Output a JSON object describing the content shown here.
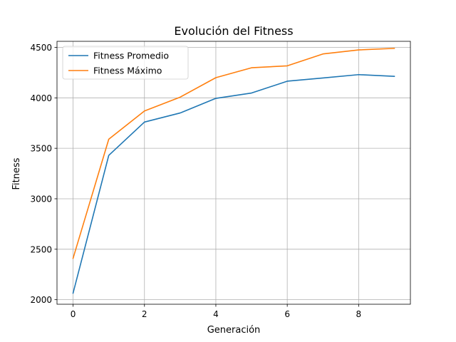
{
  "chart_data": {
    "type": "line",
    "title": "Evolución del Fitness",
    "xlabel": "Generación",
    "ylabel": "Fitness",
    "xlim": [
      -0.45,
      9.45
    ],
    "ylim": [
      1955,
      4560
    ],
    "xticks": [
      0,
      2,
      4,
      6,
      8
    ],
    "yticks": [
      2000,
      2500,
      3000,
      3500,
      4000,
      4500
    ],
    "grid": true,
    "legend_position": "upper-left",
    "x": [
      0,
      1,
      2,
      3,
      4,
      5,
      6,
      7,
      8,
      9
    ],
    "series": [
      {
        "name": "Fitness Promedio",
        "color": "#1f77b4",
        "values": [
          2065,
          3430,
          3760,
          3850,
          3995,
          4048,
          4165,
          4197,
          4230,
          4213
        ]
      },
      {
        "name": "Fitness Máximo",
        "color": "#ff7f0e",
        "values": [
          2410,
          3590,
          3870,
          4007,
          4200,
          4298,
          4317,
          4435,
          4475,
          4490
        ]
      }
    ]
  }
}
